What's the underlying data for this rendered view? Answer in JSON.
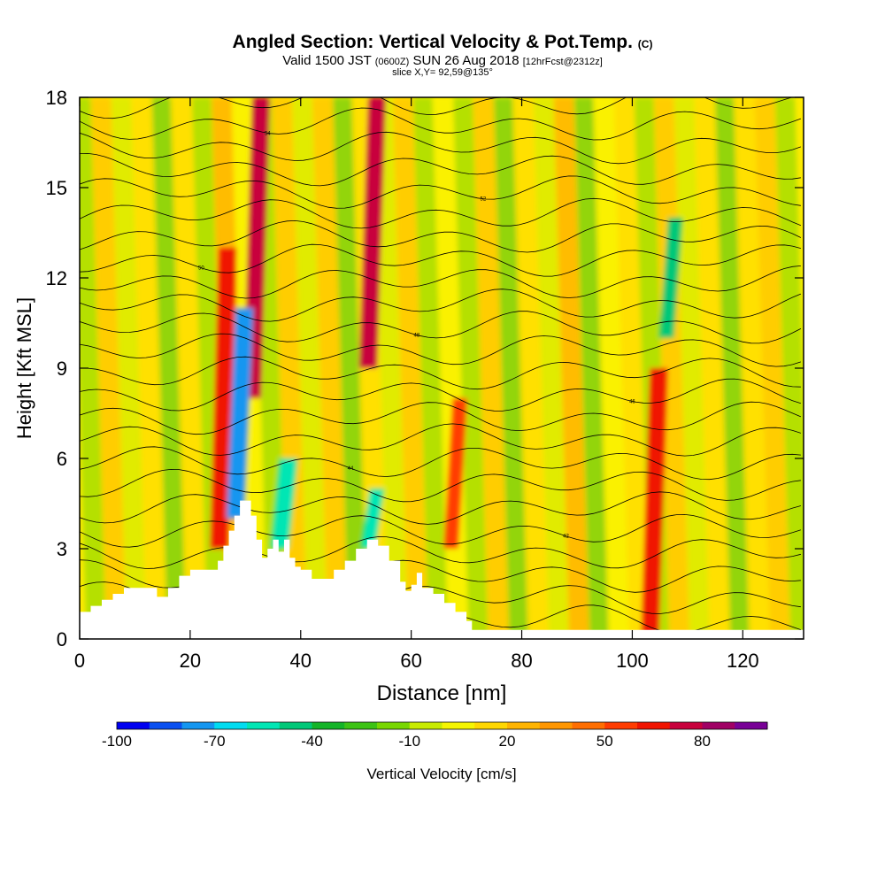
{
  "header": {
    "title": "Angled Section: Vertical Velocity & Pot.Temp.",
    "title_units": "(C)",
    "valid_prefix": "Valid 1500 JST",
    "valid_utc": "(0600Z)",
    "valid_date": "SUN 26 Aug 2018",
    "forecast": "[12hrFcst@2312z]",
    "slice": "slice X,Y= 92,59@135°"
  },
  "chart_data": {
    "type": "heatmap",
    "title": "Angled Section: Vertical Velocity & Pot.Temp. (C)",
    "xlabel": "Distance [nm]",
    "ylabel": "Height [Kft MSL]",
    "xlim": [
      0,
      131
    ],
    "ylim": [
      0,
      18
    ],
    "x_ticks": [
      "0",
      "20",
      "40",
      "60",
      "80",
      "100",
      "120"
    ],
    "y_ticks": [
      "0",
      "3",
      "6",
      "9",
      "12",
      "15",
      "18"
    ],
    "fill_variable": "Vertical Velocity [cm/s]",
    "contour_variable": "Pot.Temp. (C)",
    "colorbar": {
      "label": "Vertical Velocity [cm/s]",
      "tick_labels": [
        "-100",
        "-70",
        "-40",
        "-10",
        "20",
        "50",
        "80"
      ],
      "levels": [
        -100,
        -90,
        -80,
        -70,
        -60,
        -50,
        -40,
        -30,
        -20,
        -10,
        0,
        10,
        20,
        30,
        40,
        50,
        60,
        70,
        80,
        90,
        100
      ],
      "colors": [
        "#0000f0",
        "#0a50f0",
        "#1496f0",
        "#00dcf0",
        "#00e6b4",
        "#00c878",
        "#14b428",
        "#3cc314",
        "#78d700",
        "#c8eb00",
        "#f5f500",
        "#ffd700",
        "#ffb400",
        "#ff9600",
        "#ff6e00",
        "#ff3c00",
        "#f01400",
        "#c8003c",
        "#a00064",
        "#780096"
      ]
    },
    "updrafts": [
      {
        "x": 26,
        "height_range": [
          3,
          13
        ],
        "w": 60
      },
      {
        "x": 32,
        "height_range": [
          8,
          18
        ],
        "w": 70
      },
      {
        "x": 53,
        "height_range": [
          9,
          18
        ],
        "w": 70
      },
      {
        "x": 68,
        "height_range": [
          3,
          8
        ],
        "w": 55
      },
      {
        "x": 104,
        "height_range": [
          0,
          9
        ],
        "w": 60
      }
    ],
    "downdrafts": [
      {
        "x": 29,
        "height_range": [
          4,
          11
        ],
        "w": -75
      },
      {
        "x": 37,
        "height_range": [
          3,
          6
        ],
        "w": -60
      },
      {
        "x": 53,
        "height_range": [
          3,
          5
        ],
        "w": -55
      },
      {
        "x": 107,
        "height_range": [
          10,
          14
        ],
        "w": -45
      }
    ],
    "terrain": {
      "x": [
        0,
        2,
        4,
        6,
        8,
        10,
        12,
        14,
        16,
        18,
        20,
        22,
        24,
        25,
        26,
        27,
        28,
        29,
        30,
        31,
        32,
        33,
        34,
        35,
        36,
        37,
        38,
        39,
        40,
        42,
        44,
        46,
        48,
        50,
        52,
        54,
        56,
        58,
        59,
        60,
        61,
        62,
        64,
        66,
        68,
        70,
        71,
        131
      ],
      "height": [
        0.9,
        1.1,
        1.3,
        1.5,
        1.7,
        1.7,
        1.7,
        1.4,
        1.7,
        2.1,
        2.3,
        2.3,
        2.3,
        2.6,
        3.1,
        3.6,
        4.1,
        4.6,
        4.6,
        4.1,
        3.3,
        2.7,
        3.0,
        3.3,
        2.9,
        3.3,
        2.7,
        2.4,
        2.3,
        2.0,
        2.0,
        2.3,
        2.6,
        3.0,
        3.3,
        3.1,
        2.6,
        1.9,
        1.6,
        1.8,
        2.2,
        1.7,
        1.5,
        1.2,
        0.9,
        0.6,
        0.3,
        0.3
      ]
    },
    "contour_labels": [
      "40",
      "42",
      "44",
      "46",
      "48",
      "50",
      "52",
      "54",
      "56",
      "58",
      "60"
    ]
  }
}
